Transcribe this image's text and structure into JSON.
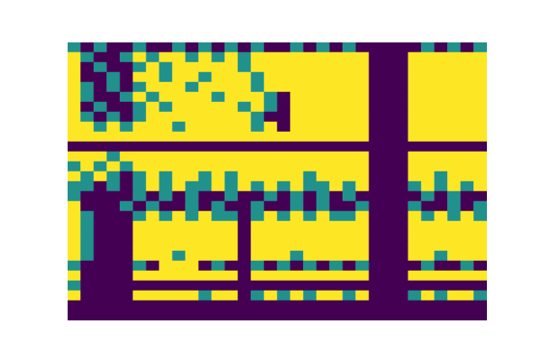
{
  "chart_data": {
    "type": "heatmap",
    "xlim": [
      0,
      32
    ],
    "ylim": [
      0,
      28
    ],
    "zlim": [
      0,
      1
    ],
    "tick_labels": false,
    "cells": [
      [
        0.5,
        0,
        0.5,
        0,
        0,
        0.5,
        0,
        0,
        0.5,
        0,
        0.5,
        0,
        0.5,
        0,
        0.5,
        0,
        0,
        0.5,
        0,
        0.5,
        0,
        0.5,
        0,
        0,
        0,
        0,
        0,
        0.5,
        0,
        0.5,
        0,
        0.5
      ],
      [
        1,
        0.5,
        0,
        0,
        0.5,
        1,
        0.5,
        1,
        1,
        0.5,
        1,
        0.5,
        1,
        0.5,
        1,
        1,
        1,
        1,
        1,
        1,
        1,
        1,
        1,
        0,
        0,
        0,
        1,
        1,
        1,
        1,
        1,
        1
      ],
      [
        1,
        0,
        0.5,
        0,
        0,
        0.5,
        1,
        0.5,
        1,
        1,
        1,
        1,
        1,
        0.5,
        1,
        1,
        1,
        1,
        1,
        1,
        1,
        1,
        1,
        0,
        0,
        0,
        1,
        1,
        1,
        1,
        1,
        1
      ],
      [
        1,
        0,
        0,
        0.5,
        0,
        1,
        1,
        0.5,
        1,
        1,
        0.5,
        1,
        1,
        1,
        0.5,
        1,
        1,
        1,
        1,
        1,
        1,
        1,
        1,
        0,
        0,
        0,
        1,
        1,
        1,
        1,
        1,
        1
      ],
      [
        1,
        0.5,
        0,
        0.5,
        0,
        0.5,
        1,
        1,
        1,
        0.5,
        1,
        1,
        1,
        1,
        0.5,
        1,
        1,
        1,
        1,
        1,
        1,
        1,
        1,
        0,
        0,
        0,
        1,
        1,
        1,
        1,
        1,
        1
      ],
      [
        1,
        0.5,
        0,
        0,
        0.5,
        1,
        0.5,
        1,
        1,
        1,
        1,
        0.5,
        1,
        1,
        1,
        0.5,
        0,
        1,
        1,
        1,
        1,
        1,
        1,
        0,
        0,
        0,
        1,
        1,
        1,
        1,
        1,
        1
      ],
      [
        1,
        0,
        0.5,
        0,
        0,
        0.5,
        1,
        0.5,
        1,
        1,
        1,
        1,
        1,
        0.5,
        1,
        0.5,
        0,
        1,
        1,
        1,
        1,
        1,
        1,
        0,
        0,
        0,
        1,
        1,
        1,
        1,
        1,
        1
      ],
      [
        1,
        0.5,
        0,
        0.5,
        0,
        0.5,
        1,
        1,
        1,
        1,
        1,
        1,
        1,
        1,
        0.5,
        0,
        0,
        1,
        1,
        1,
        1,
        1,
        1,
        0,
        0,
        0,
        1,
        1,
        1,
        1,
        1,
        1
      ],
      [
        1,
        1,
        0.5,
        1,
        0.5,
        1,
        1,
        1,
        0.5,
        1,
        1,
        1,
        1,
        1,
        0.5,
        1,
        0,
        1,
        1,
        1,
        1,
        1,
        1,
        0,
        0,
        0,
        1,
        1,
        1,
        1,
        1,
        1
      ],
      [
        1,
        1,
        1,
        1,
        1,
        1,
        1,
        1,
        1,
        1,
        1,
        1,
        1,
        1,
        1,
        1,
        1,
        1,
        1,
        1,
        1,
        1,
        1,
        0,
        0,
        0,
        1,
        1,
        1,
        1,
        1,
        1
      ],
      [
        0,
        0,
        0,
        0,
        0,
        0,
        0,
        0,
        0,
        0,
        0,
        0,
        0,
        0,
        0,
        0,
        0,
        0,
        0,
        0,
        0,
        0,
        0,
        0,
        0,
        0,
        0,
        0,
        0,
        0,
        0,
        0
      ],
      [
        1,
        1,
        1,
        0.5,
        1,
        1,
        1,
        1,
        1,
        1,
        1,
        1,
        1,
        1,
        1,
        1,
        1,
        1,
        1,
        1,
        1,
        1,
        1,
        0,
        0,
        0,
        1,
        1,
        1,
        1,
        1,
        1
      ],
      [
        0.5,
        1,
        0.5,
        1,
        0.5,
        1,
        1,
        1,
        1,
        1,
        1,
        1,
        1,
        1,
        1,
        1,
        1,
        1,
        1,
        1,
        1,
        1,
        1,
        0,
        0,
        0,
        1,
        1,
        1,
        1,
        1,
        1
      ],
      [
        1,
        0.5,
        1,
        0.5,
        0,
        0.5,
        1,
        0.5,
        1,
        1,
        0.5,
        1,
        0.5,
        1,
        1,
        1,
        1,
        1,
        0.5,
        1,
        1,
        1,
        1,
        0,
        0,
        0,
        1,
        1,
        0.5,
        1,
        1,
        1
      ],
      [
        0.5,
        0.5,
        0,
        0.5,
        0,
        0.5,
        1,
        0.5,
        1,
        0.5,
        0.5,
        1,
        0.5,
        1,
        0.5,
        1,
        0.5,
        1,
        0.5,
        0.5,
        1,
        0.5,
        1,
        0,
        0,
        0,
        0.5,
        1,
        0.5,
        1,
        0.5,
        1
      ],
      [
        0.5,
        0,
        0,
        0,
        0,
        0.5,
        0,
        0.5,
        0,
        0.5,
        0,
        0,
        0.5,
        0,
        0,
        0.5,
        0,
        0.5,
        0,
        0.5,
        0,
        0.5,
        0,
        0,
        0,
        0,
        0,
        0.5,
        0,
        0.5,
        0,
        0
      ],
      [
        1,
        0,
        0,
        0,
        0.5,
        0,
        0.5,
        0,
        0,
        0.5,
        0,
        0.5,
        0,
        0,
        0.5,
        0,
        0,
        0.5,
        0,
        0.5,
        0,
        0,
        0.5,
        0,
        0,
        0,
        0.5,
        0,
        0,
        0.5,
        0,
        0.5
      ],
      [
        1,
        0.5,
        0,
        0,
        0,
        0.5,
        1,
        0.5,
        1,
        0.5,
        1,
        0.5,
        0.5,
        0,
        0.5,
        1,
        0.5,
        1,
        0.5,
        1,
        0.5,
        0.5,
        1,
        0,
        0,
        0,
        1,
        0.5,
        1,
        0.5,
        1,
        0.5
      ],
      [
        1,
        0.5,
        0,
        0,
        0,
        1,
        1,
        1,
        1,
        1,
        1,
        1,
        1,
        0,
        1,
        1,
        1,
        1,
        1,
        1,
        1,
        1,
        1,
        0,
        0,
        0,
        1,
        1,
        1,
        1,
        1,
        1
      ],
      [
        1,
        0.5,
        0,
        0,
        0,
        1,
        1,
        1,
        1,
        1,
        1,
        1,
        1,
        0,
        1,
        1,
        1,
        1,
        1,
        1,
        1,
        1,
        1,
        0,
        0,
        0,
        1,
        1,
        1,
        1,
        1,
        1
      ],
      [
        1,
        0.5,
        0,
        0,
        0,
        1,
        1,
        1,
        1,
        1,
        1,
        1,
        1,
        0,
        1,
        1,
        1,
        1,
        1,
        1,
        1,
        1,
        1,
        0,
        0,
        0,
        1,
        1,
        1,
        1,
        1,
        1
      ],
      [
        1,
        0.5,
        0,
        0,
        0,
        1,
        1,
        1,
        0.5,
        1,
        1,
        1,
        1,
        0,
        1,
        1,
        1,
        0.5,
        1,
        1,
        1,
        1,
        1,
        0,
        0,
        0,
        1,
        1,
        0.5,
        1,
        1,
        1
      ],
      [
        0.5,
        0,
        0,
        0,
        0,
        0.5,
        0,
        1,
        1,
        1,
        0,
        0.5,
        0,
        0,
        0.5,
        0,
        0.5,
        0,
        0.5,
        0,
        0.5,
        0,
        0.5,
        0,
        0,
        0,
        0,
        0.5,
        0,
        0,
        0.5,
        0
      ],
      [
        1,
        0,
        0,
        0,
        0,
        1,
        1,
        1,
        1,
        1,
        1,
        1,
        1,
        0,
        1,
        1,
        1,
        1,
        1,
        1,
        1,
        1,
        1,
        0,
        0,
        0,
        1,
        1,
        1,
        1,
        1,
        1
      ],
      [
        0.5,
        0,
        0,
        0,
        0,
        0,
        0,
        0,
        0,
        0,
        0,
        0,
        0,
        0,
        0,
        0,
        0,
        0,
        0,
        0,
        0,
        0,
        0,
        0,
        0,
        0,
        0,
        0,
        0,
        0,
        0,
        0
      ],
      [
        1,
        0,
        0,
        0,
        0,
        1,
        1,
        1,
        1,
        1,
        0.5,
        1,
        1,
        0,
        0.5,
        1,
        0.5,
        1,
        0.5,
        1,
        1,
        0.5,
        1,
        0,
        0,
        0,
        0.5,
        1,
        0.5,
        1,
        1,
        0.5
      ],
      [
        0,
        0,
        0,
        0,
        0,
        0,
        0,
        0,
        0,
        0,
        0,
        0,
        0,
        0,
        0,
        0,
        0,
        0,
        0,
        0,
        0,
        0,
        0,
        0,
        0,
        0,
        0,
        0,
        0,
        0,
        0,
        0
      ],
      [
        0,
        0,
        0,
        0,
        0,
        0,
        0,
        0,
        0,
        0,
        0,
        0,
        0,
        0,
        0,
        0,
        0,
        0,
        0,
        0,
        0,
        0,
        0,
        0,
        0,
        0,
        0,
        0,
        0,
        0,
        0,
        0
      ]
    ]
  }
}
